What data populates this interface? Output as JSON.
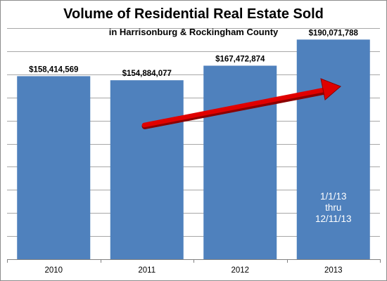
{
  "chart_data": {
    "type": "bar",
    "title": "Volume of Residential Real Estate Sold",
    "subtitle": "in Harrisonburg & Rockingham County",
    "categories": [
      "2010",
      "2011",
      "2012",
      "2013"
    ],
    "values": [
      158414569,
      154884077,
      167472874,
      190071788
    ],
    "data_labels": [
      "$158,414,569",
      "$154,884,077",
      "$167,472,874",
      "$190,071,788"
    ],
    "ylim": [
      0,
      200000000
    ],
    "grid": true,
    "bar_color": "#4f81bd",
    "arrow_color": "#e00000",
    "annotation": [
      "1/1/13",
      "thru",
      "12/11/13"
    ]
  }
}
